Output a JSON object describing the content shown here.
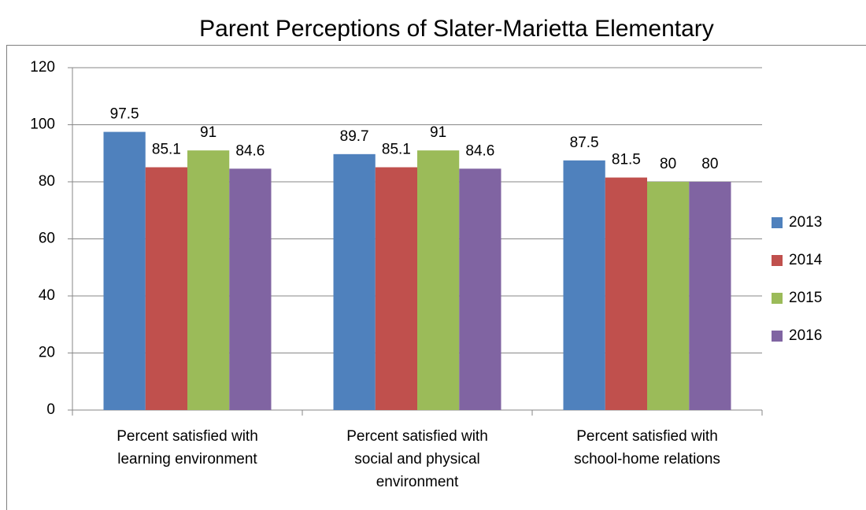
{
  "chart_data": {
    "type": "bar",
    "title": "Parent Perceptions of Slater-Marietta Elementary",
    "categories": [
      "Percent satisfied with learning environment",
      "Percent satisfied with social and physical environment",
      "Percent satisfied with school-home relations"
    ],
    "series": [
      {
        "name": "2013",
        "color": "#4f81bd",
        "values": [
          97.5,
          89.7,
          87.5
        ]
      },
      {
        "name": "2014",
        "color": "#c0504d",
        "values": [
          85.1,
          85.1,
          81.5
        ]
      },
      {
        "name": "2015",
        "color": "#9bbb59",
        "values": [
          91,
          91,
          80
        ]
      },
      {
        "name": "2016",
        "color": "#8064a2",
        "values": [
          84.6,
          84.6,
          80
        ]
      }
    ],
    "ylim": [
      0,
      120
    ],
    "yticks": [
      0,
      20,
      40,
      60,
      80,
      100,
      120
    ],
    "grid": true,
    "legend": "right"
  }
}
